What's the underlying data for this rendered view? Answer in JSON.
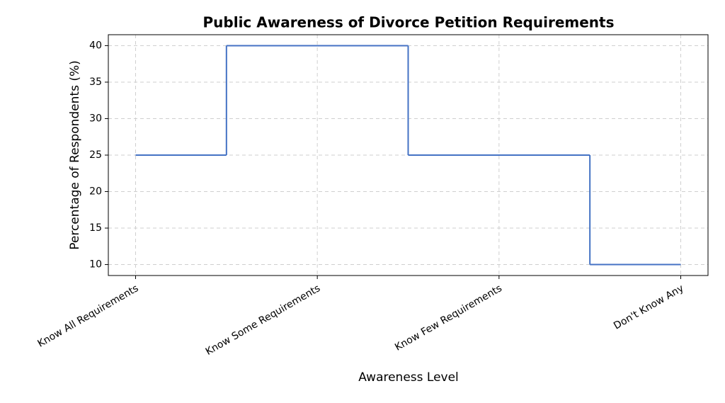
{
  "chart_data": {
    "type": "step",
    "title": "Public Awareness of Divorce Petition Requirements",
    "x_label": "Awareness Level",
    "y_label": "Percentage of Respondents (%)",
    "categories": [
      "Know All Requirements",
      "Know Some Requirements",
      "Know Few Requirements",
      "Don't Know Any"
    ],
    "values": [
      25,
      40,
      25,
      10
    ],
    "color": "#4472c4",
    "ylim": [
      8.5,
      41.5
    ],
    "yticks": [
      10,
      15,
      20,
      25,
      30,
      35,
      40
    ],
    "grid": true
  }
}
